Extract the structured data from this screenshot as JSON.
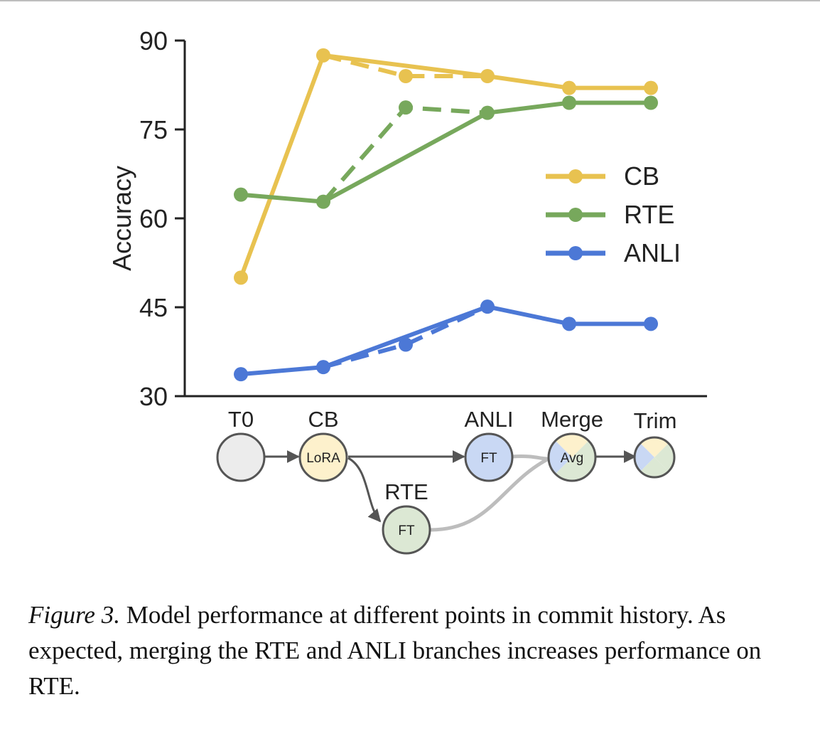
{
  "chart_data": {
    "type": "line",
    "ylabel": "Accuracy",
    "ylim": [
      30,
      90
    ],
    "yticks": [
      30,
      45,
      60,
      75,
      90
    ],
    "x_positions": [
      "T0",
      "CB",
      "RTE",
      "ANLI",
      "Merge",
      "Trim"
    ],
    "legend_position": "right",
    "series": [
      {
        "name": "CB",
        "color": "#E8C250",
        "main": {
          "x": [
            "T0",
            "CB",
            "ANLI",
            "Merge",
            "Trim"
          ],
          "y": [
            50,
            87.5,
            84,
            82,
            82
          ]
        },
        "branch": {
          "x": [
            "CB",
            "RTE",
            "ANLI"
          ],
          "y": [
            87.5,
            84,
            84
          ]
        }
      },
      {
        "name": "RTE",
        "color": "#77A85C",
        "main": {
          "x": [
            "T0",
            "CB",
            "ANLI",
            "Merge",
            "Trim"
          ],
          "y": [
            64,
            62.8,
            77.8,
            79.5,
            79.5
          ]
        },
        "branch": {
          "x": [
            "CB",
            "RTE",
            "ANLI"
          ],
          "y": [
            62.8,
            78.7,
            77.8
          ]
        }
      },
      {
        "name": "ANLI",
        "color": "#4C78D6",
        "main": {
          "x": [
            "T0",
            "CB",
            "ANLI",
            "Merge",
            "Trim"
          ],
          "y": [
            33.7,
            34.9,
            45.1,
            42.2,
            42.2
          ]
        },
        "branch": {
          "x": [
            "CB",
            "RTE",
            "ANLI"
          ],
          "y": [
            34.9,
            38.7,
            45.1
          ]
        }
      }
    ],
    "commit_graph": {
      "labels": {
        "T0": "T0",
        "CB": "CB",
        "RTE": "RTE",
        "ANLI": "ANLI",
        "Merge": "Merge",
        "Trim": "Trim"
      },
      "nodes": {
        "T0": "",
        "CB": "LoRA",
        "RTE": "FT",
        "ANLI": "FT",
        "Merge": "Avg",
        "Trim": ""
      },
      "colors": {
        "gray": "#ECECEC",
        "cb": "#FDF1CC",
        "rte": "#DCE8D4",
        "anli": "#C9D8F4",
        "edge": "#555555",
        "merge_edge": "#BDBDBD"
      }
    }
  },
  "caption": {
    "label": "Figure 3.",
    "text": "Model performance at different points in commit history. As expected, merging the RTE and ANLI branches increases performance on RTE."
  }
}
